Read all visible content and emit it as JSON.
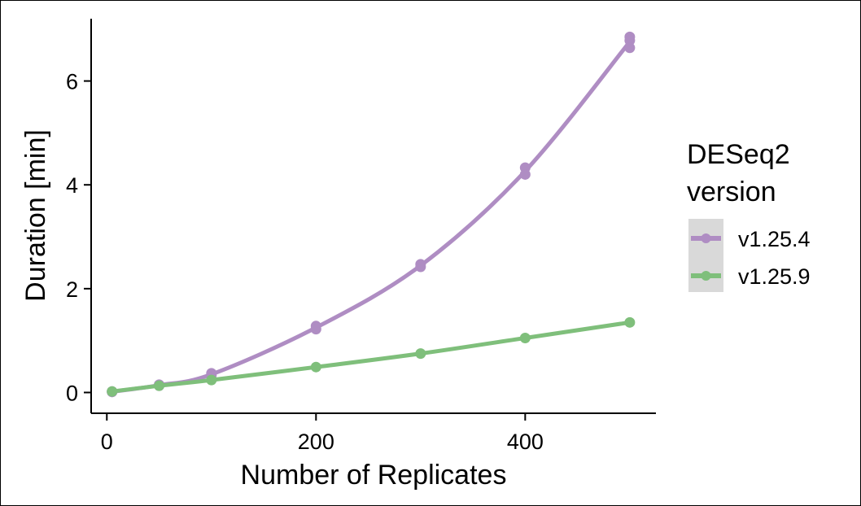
{
  "chart_data": {
    "type": "line",
    "xlabel": "Number of Replicates",
    "ylabel": "Duration [min]",
    "xlim": [
      -15,
      525
    ],
    "ylim": [
      -0.4,
      7.2
    ],
    "x_ticks": [
      0,
      200,
      400
    ],
    "y_ticks": [
      0,
      2,
      4,
      6
    ],
    "grid": false,
    "legend": {
      "title_lines": [
        "DESeq2",
        "version"
      ],
      "placement": "right"
    },
    "series": [
      {
        "name": "v1.25.4",
        "color": "#af8dc3",
        "x": [
          5,
          5,
          50,
          50,
          100,
          100,
          200,
          200,
          300,
          300,
          400,
          400,
          500,
          500,
          500
        ],
        "y": [
          0.02,
          0.01,
          0.15,
          0.13,
          0.37,
          0.33,
          1.28,
          1.22,
          2.47,
          2.42,
          4.33,
          4.2,
          6.85,
          6.78,
          6.64
        ]
      },
      {
        "name": "v1.25.9",
        "color": "#7fbf7b",
        "x": [
          5,
          50,
          100,
          200,
          300,
          400,
          500
        ],
        "y": [
          0.02,
          0.13,
          0.24,
          0.49,
          0.75,
          1.05,
          1.35
        ]
      }
    ]
  }
}
